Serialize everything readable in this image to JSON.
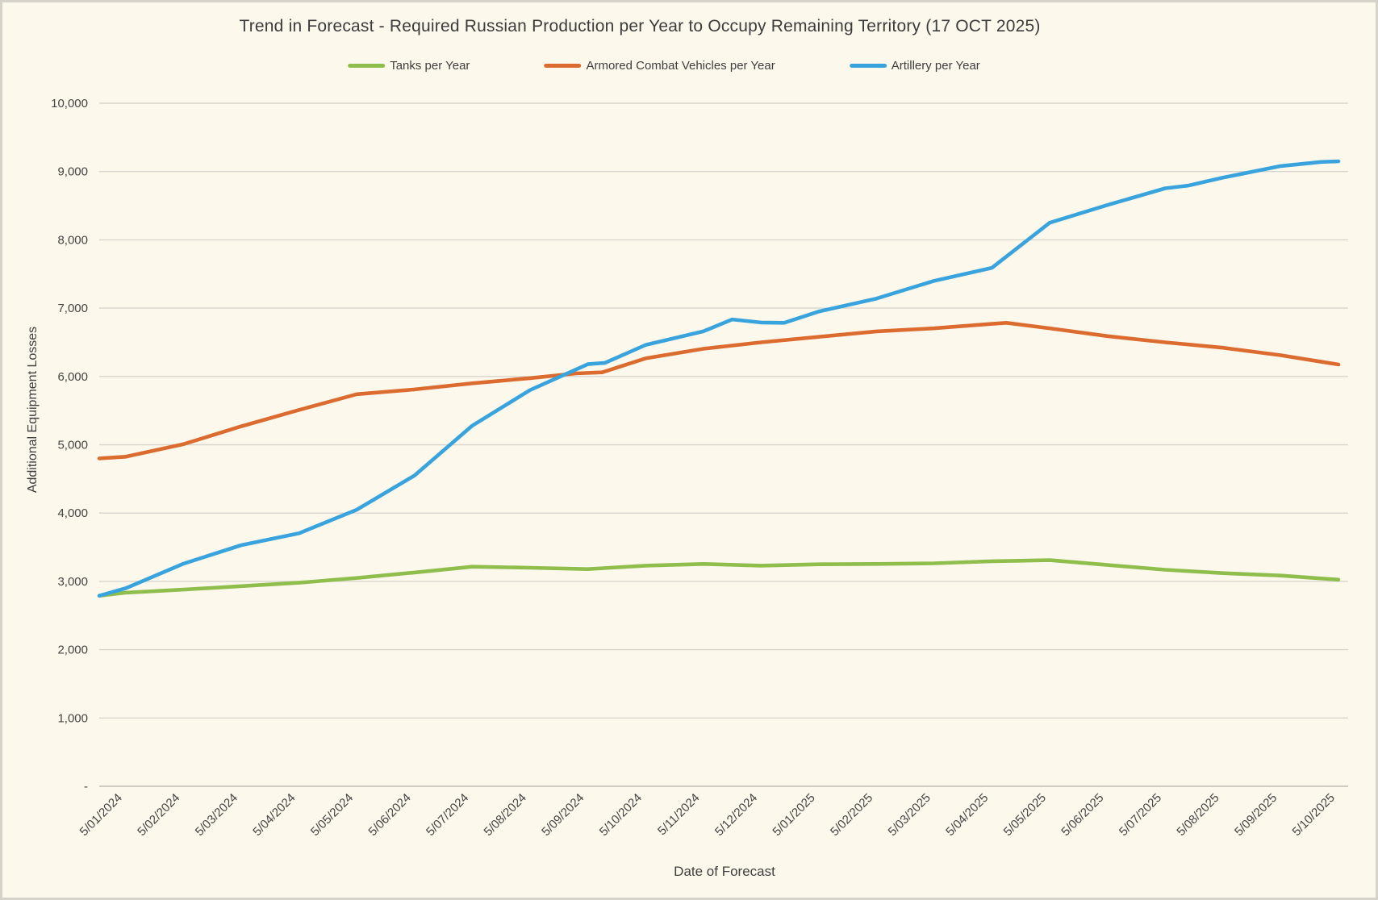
{
  "title": "Trend in Forecast - Required Russian Production per Year to Occupy Remaining Territory (17 OCT 2025)",
  "axes": {
    "x_title": "Date of Forecast",
    "y_title": "Additional Equipment Losses"
  },
  "colors": {
    "background": "#FDF8EC",
    "frame_border": "#D5D2C9",
    "gridline": "#D8D5CE",
    "text": "#3E3E3E",
    "tanks_green": "#8FBE4D",
    "acv_orange": "#DC6B2F",
    "artillery_blue": "#38A3DC"
  },
  "chart_data": {
    "type": "line",
    "title": "Trend in Forecast - Required Russian Production per Year to Occupy Remaining Territory (17 OCT 2025)",
    "xlabel": "Date of Forecast",
    "ylabel": "Additional Equipment Losses",
    "ylim": [
      0,
      10000
    ],
    "grid": true,
    "legend_position": "top",
    "y_ticks": [
      {
        "v": 0,
        "label": "-"
      },
      {
        "v": 1000,
        "label": "1,000"
      },
      {
        "v": 2000,
        "label": "2,000"
      },
      {
        "v": 3000,
        "label": "3,000"
      },
      {
        "v": 4000,
        "label": "4,000"
      },
      {
        "v": 5000,
        "label": "5,000"
      },
      {
        "v": 6000,
        "label": "6,000"
      },
      {
        "v": 7000,
        "label": "7,000"
      },
      {
        "v": 8000,
        "label": "8,000"
      },
      {
        "v": 9000,
        "label": "9,000"
      },
      {
        "v": 10000,
        "label": "10,000"
      }
    ],
    "categories": [
      "5/01/2024",
      "5/02/2024",
      "5/03/2024",
      "5/04/2024",
      "5/05/2024",
      "5/06/2024",
      "5/07/2024",
      "5/08/2024",
      "5/09/2024",
      "5/10/2024",
      "5/11/2024",
      "5/12/2024",
      "5/01/2025",
      "5/02/2025",
      "5/03/2025",
      "5/04/2025",
      "5/05/2025",
      "5/06/2025",
      "5/07/2025",
      "5/08/2025",
      "5/09/2025",
      "5/10/2025"
    ],
    "series": [
      {
        "name": "Tanks per Year",
        "color": "#8FBE4D",
        "points": [
          [
            -0.46,
            2790
          ],
          [
            0,
            2835
          ],
          [
            1,
            2880
          ],
          [
            2,
            2930
          ],
          [
            3,
            2980
          ],
          [
            4,
            3050
          ],
          [
            5,
            3130
          ],
          [
            6,
            3215
          ],
          [
            7,
            3200
          ],
          [
            8,
            3180
          ],
          [
            9,
            3230
          ],
          [
            10,
            3255
          ],
          [
            11,
            3230
          ],
          [
            12,
            3250
          ],
          [
            13,
            3255
          ],
          [
            14,
            3265
          ],
          [
            15,
            3295
          ],
          [
            16,
            3310
          ],
          [
            17,
            3240
          ],
          [
            18,
            3170
          ],
          [
            19,
            3120
          ],
          [
            20,
            3085
          ],
          [
            21,
            3025
          ]
        ]
      },
      {
        "name": "Armored Combat Vehicles per Year",
        "color": "#DC6B2F",
        "points": [
          [
            -0.46,
            4800
          ],
          [
            0,
            4825
          ],
          [
            1,
            5010
          ],
          [
            2,
            5270
          ],
          [
            3,
            5510
          ],
          [
            4,
            5740
          ],
          [
            5,
            5810
          ],
          [
            6,
            5900
          ],
          [
            7,
            5975
          ],
          [
            7.8,
            6045
          ],
          [
            8.25,
            6060
          ],
          [
            9,
            6265
          ],
          [
            10,
            6405
          ],
          [
            11,
            6500
          ],
          [
            12,
            6580
          ],
          [
            13,
            6660
          ],
          [
            14,
            6705
          ],
          [
            15,
            6770
          ],
          [
            15.25,
            6785
          ],
          [
            16,
            6705
          ],
          [
            17,
            6590
          ],
          [
            18,
            6500
          ],
          [
            19,
            6420
          ],
          [
            20,
            6310
          ],
          [
            21,
            6175
          ]
        ]
      },
      {
        "name": "Artillery per Year",
        "color": "#38A3DC",
        "points": [
          [
            -0.46,
            2790
          ],
          [
            0,
            2900
          ],
          [
            1,
            3260
          ],
          [
            2,
            3530
          ],
          [
            3,
            3705
          ],
          [
            4,
            4050
          ],
          [
            5,
            4550
          ],
          [
            6,
            5280
          ],
          [
            7,
            5800
          ],
          [
            8,
            6180
          ],
          [
            8.3,
            6200
          ],
          [
            9,
            6460
          ],
          [
            10,
            6660
          ],
          [
            10.5,
            6835
          ],
          [
            11,
            6790
          ],
          [
            11.4,
            6785
          ],
          [
            12,
            6950
          ],
          [
            13,
            7140
          ],
          [
            14,
            7400
          ],
          [
            15,
            7590
          ],
          [
            16,
            8250
          ],
          [
            17,
            8510
          ],
          [
            18,
            8755
          ],
          [
            18.4,
            8795
          ],
          [
            19,
            8910
          ],
          [
            20,
            9080
          ],
          [
            20.7,
            9140
          ],
          [
            21,
            9150
          ]
        ]
      }
    ]
  }
}
